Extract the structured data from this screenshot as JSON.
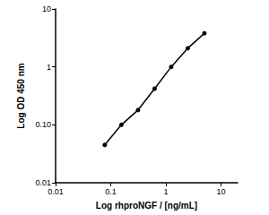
{
  "chart_data": {
    "type": "line",
    "xlabel": "Log rhproNGF / [ng/mL]",
    "ylabel": "Log OD 450 nm",
    "x": [
      0.078,
      0.156,
      0.3125,
      0.625,
      1.25,
      2.5,
      5
    ],
    "values": [
      0.045,
      0.1,
      0.18,
      0.42,
      1.0,
      2.1,
      3.8
    ],
    "color": "#000000",
    "marker": "circle",
    "xlim": [
      0.01,
      20
    ],
    "ylim": [
      0.01,
      10
    ],
    "xticks": [
      0.01,
      0.1,
      1,
      10
    ],
    "yticks": [
      0.01,
      {
        "value": 0.1,
        "label": "0.10"
      },
      1,
      10
    ],
    "log": true,
    "grid": false
  }
}
